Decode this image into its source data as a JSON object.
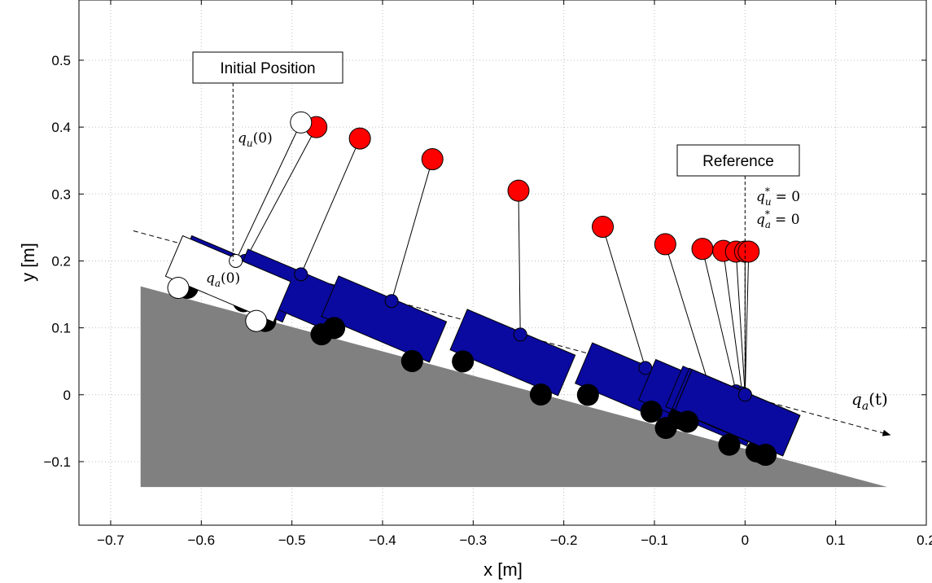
{
  "chart_data": {
    "type": "scatter",
    "xlabel": "x [m]",
    "ylabel": "y [m]",
    "xlim": [
      -0.735,
      0.2
    ],
    "ylim": [
      -0.195,
      0.59
    ],
    "xticks": [
      -0.7,
      -0.6,
      -0.5,
      -0.4,
      -0.3,
      -0.2,
      -0.1,
      0,
      0.1,
      0.2
    ],
    "yticks": [
      -0.1,
      0,
      0.1,
      0.2,
      0.3,
      0.4,
      0.5
    ],
    "xtick_labels": [
      "−0.7",
      "−0.6",
      "−0.5",
      "−0.4",
      "−0.3",
      "−0.2",
      "−0.1",
      "0",
      "0.1",
      "0.2"
    ],
    "ytick_labels": [
      "−0.1",
      "0",
      "0.1",
      "0.2",
      "0.3",
      "0.4",
      "0.5"
    ],
    "grid": true,
    "slope_angle_deg": 23,
    "ground_polygon": [
      [
        -0.667,
        0.162
      ],
      [
        -0.667,
        -0.138
      ],
      [
        0.157,
        -0.138
      ]
    ],
    "trajectory_line": {
      "from": [
        -0.675,
        0.245
      ],
      "to": [
        0.16,
        -0.06
      ]
    },
    "initial_state": {
      "cart": [
        -0.562,
        0.2
      ],
      "pendulum_bob": [
        -0.49,
        0.407
      ]
    },
    "snapshots": [
      {
        "cart": [
          -0.552,
          0.2
        ],
        "pendulum_bob": [
          -0.473,
          0.4
        ]
      },
      {
        "cart": [
          -0.49,
          0.18
        ],
        "pendulum_bob": [
          -0.425,
          0.383
        ]
      },
      {
        "cart": [
          -0.39,
          0.14
        ],
        "pendulum_bob": [
          -0.345,
          0.352
        ]
      },
      {
        "cart": [
          -0.248,
          0.09
        ],
        "pendulum_bob": [
          -0.25,
          0.305
        ]
      },
      {
        "cart": [
          -0.11,
          0.04
        ],
        "pendulum_bob": [
          -0.157,
          0.251
        ]
      },
      {
        "cart": [
          -0.04,
          0.015
        ],
        "pendulum_bob": [
          -0.088,
          0.225
        ]
      },
      {
        "cart": [
          -0.01,
          0.005
        ],
        "pendulum_bob": [
          -0.047,
          0.218
        ]
      },
      {
        "cart": [
          -0.003,
          0.002
        ],
        "pendulum_bob": [
          -0.024,
          0.215
        ]
      },
      {
        "cart": [
          0.0,
          0.0
        ],
        "pendulum_bob": [
          -0.01,
          0.214
        ]
      },
      {
        "cart": [
          0.0,
          0.0
        ],
        "pendulum_bob": [
          0.0,
          0.214
        ]
      },
      {
        "cart": [
          0.0,
          0.0
        ],
        "pendulum_bob": [
          0.004,
          0.214
        ]
      }
    ],
    "annotations": {
      "initial_position": {
        "text": "Initial Position",
        "x": -0.565,
        "y": 0.49
      },
      "reference": {
        "text": "Reference",
        "x": 0.0,
        "y": 0.353
      },
      "qu0": "q",
      "qu0_sub": "u",
      "qu0_arg": "(0)",
      "qa0": "q",
      "qa0_sub": "a",
      "qa0_arg": "(0)",
      "qu_star": "q",
      "qu_star_sub": "u",
      "qu_star_sup": "*",
      "qu_star_rhs": "= 0",
      "qa_star": "q",
      "qa_star_sub": "a",
      "qa_star_sup": "*",
      "qa_star_rhs": "= 0",
      "qat": "q",
      "qat_sub": "a",
      "qat_arg": "(t)"
    },
    "colors": {
      "ground": "#808080",
      "cart_snapshot": "#0a0aa0",
      "cart_initial": "#ffffff",
      "bob_snapshot": "#ff0000",
      "bob_initial": "#ffffff",
      "wheel": "#000000",
      "grid": "#bfbfbf"
    }
  }
}
